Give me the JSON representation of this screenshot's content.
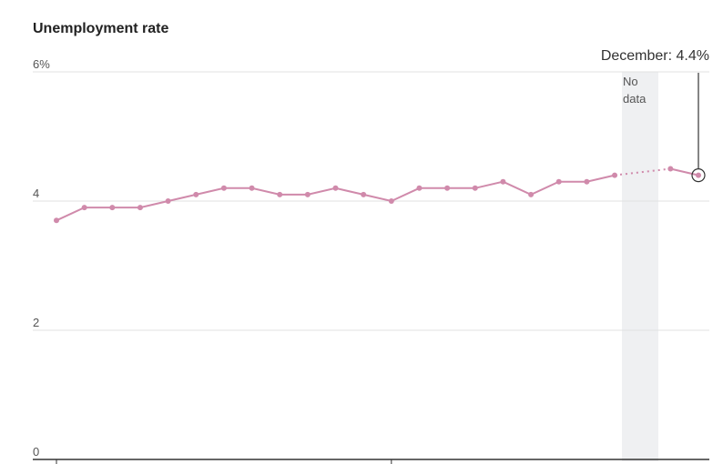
{
  "chart_data": {
    "type": "line",
    "title": "Unemployment rate",
    "categories": [
      null,
      null,
      null,
      null,
      null,
      null,
      null,
      null,
      null,
      null,
      null,
      null,
      null,
      null,
      null,
      null,
      null,
      null,
      null,
      null,
      null,
      null,
      null,
      null
    ],
    "series": [
      {
        "name": "Unemployment rate",
        "color": "#d08aab",
        "values": [
          3.7,
          3.9,
          3.9,
          3.9,
          4.0,
          4.1,
          4.2,
          4.2,
          4.1,
          4.1,
          4.2,
          4.1,
          4.0,
          4.2,
          4.2,
          4.2,
          4.3,
          4.1,
          4.3,
          4.3,
          4.4,
          null,
          4.5,
          4.4
        ]
      }
    ],
    "ylim": [
      0,
      6
    ],
    "yticks": [
      0,
      2,
      4,
      {
        "value": 6,
        "label": "6%"
      }
    ],
    "grid": true,
    "shade_label": [
      "No",
      "data"
    ],
    "annotation": "December: 4.4%"
  }
}
